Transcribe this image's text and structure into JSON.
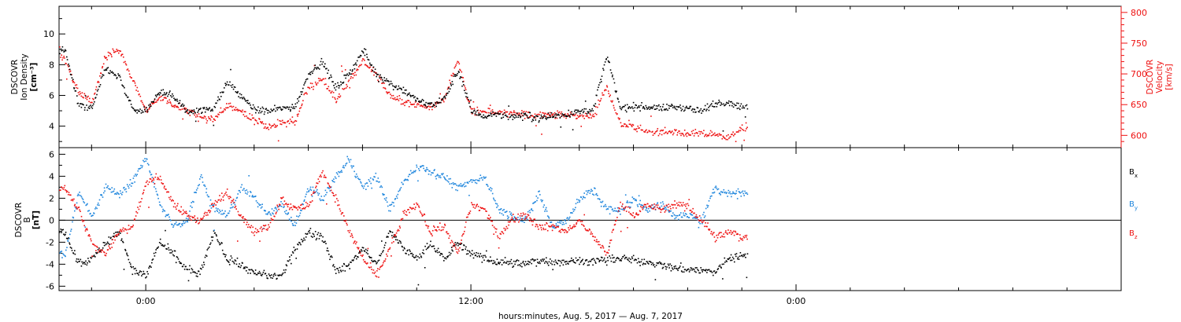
{
  "xlabel": "hours:minutes, Aug.  5, 2017 — Aug.  7, 2017",
  "x_ticks": [
    "0:00",
    "12:00",
    "0:00"
  ],
  "colors": {
    "black": "#000000",
    "red": "#ee1111",
    "blue": "#1f86dd"
  },
  "chart_data": [
    {
      "type": "scatter",
      "name": "plasma",
      "ylabel": [
        "DSCOVR",
        "Ion Density",
        "[cm⁻³]"
      ],
      "ylabel_right": [
        "DSCOVR",
        "Velocity",
        "[km/s]"
      ],
      "ylim": [
        2.6,
        11.8
      ],
      "yticks": [
        4,
        6,
        8,
        10
      ],
      "ylim_right": [
        580,
        810
      ],
      "yticks_right": [
        600,
        650,
        700,
        750,
        800
      ],
      "x_unit": "hours from Aug. 5 2017 0:00",
      "xlim": [
        -3.2,
        36
      ],
      "x_data_end": 22.2,
      "grid": false,
      "series": [
        {
          "color": "black",
          "axis": "left",
          "x": [
            -3.0,
            -2.5,
            -2.0,
            -1.5,
            -1.0,
            -0.5,
            0.0,
            0.5,
            1.0,
            1.5,
            2.0,
            2.5,
            3.0,
            3.5,
            4.0,
            4.5,
            5.0,
            5.5,
            6.0,
            6.5,
            7.0,
            7.5,
            8.0,
            8.5,
            9.0,
            9.5,
            10.0,
            10.5,
            11.0,
            11.5,
            12.0,
            12.5,
            13.0,
            13.5,
            14.0,
            14.5,
            15.0,
            15.5,
            16.0,
            16.5,
            17.0,
            17.5,
            18.0,
            18.5,
            19.0,
            19.5,
            20.0,
            20.5,
            21.0,
            21.5,
            22.0
          ],
          "values": [
            9.0,
            5.4,
            5.2,
            7.8,
            7.2,
            5.1,
            5.0,
            6.3,
            6.0,
            5.0,
            5.1,
            5.2,
            6.9,
            6.0,
            5.1,
            5.0,
            5.2,
            5.3,
            7.5,
            8.2,
            6.5,
            7.5,
            8.9,
            7.4,
            6.8,
            6.4,
            5.7,
            5.4,
            5.8,
            7.7,
            5.0,
            4.7,
            4.8,
            4.7,
            4.7,
            4.6,
            4.7,
            4.8,
            5.0,
            5.2,
            8.6,
            5.2,
            5.3,
            5.3,
            5.2,
            5.3,
            5.2,
            5.0,
            5.5,
            5.6,
            5.3
          ]
        },
        {
          "color": "red",
          "axis": "right",
          "x": [
            -3.0,
            -2.5,
            -2.0,
            -1.5,
            -1.0,
            -0.5,
            0.0,
            0.5,
            1.0,
            1.5,
            2.0,
            2.5,
            3.0,
            3.5,
            4.0,
            4.5,
            5.0,
            5.5,
            6.0,
            6.5,
            7.0,
            7.5,
            8.0,
            8.5,
            9.0,
            9.5,
            10.0,
            10.5,
            11.0,
            11.5,
            12.0,
            12.5,
            13.0,
            13.5,
            14.0,
            14.5,
            15.0,
            15.5,
            16.0,
            16.5,
            17.0,
            17.5,
            18.0,
            18.5,
            19.0,
            19.5,
            20.0,
            20.5,
            21.0,
            21.5,
            22.0
          ],
          "values": [
            725,
            670,
            655,
            730,
            740,
            690,
            640,
            665,
            650,
            640,
            630,
            625,
            650,
            640,
            625,
            615,
            620,
            625,
            680,
            690,
            660,
            690,
            720,
            700,
            665,
            655,
            650,
            645,
            660,
            725,
            640,
            638,
            638,
            636,
            635,
            634,
            635,
            634,
            633,
            632,
            680,
            620,
            612,
            608,
            607,
            606,
            604,
            603,
            602,
            598,
            612
          ]
        }
      ]
    },
    {
      "type": "scatter",
      "name": "magnetic-field",
      "ylabel": [
        "DSCOVR",
        "B",
        "[nT]"
      ],
      "ylim": [
        -6.4,
        6.6
      ],
      "yticks": [
        -6,
        -4,
        -2,
        0,
        2,
        4,
        6
      ],
      "zero_line": true,
      "legend_position": "right",
      "x_unit": "hours from Aug. 5 2017 0:00",
      "xlim": [
        -3.2,
        36
      ],
      "x_data_end": 22.2,
      "grid": false,
      "series": [
        {
          "name": "Bx",
          "color": "black",
          "x": [
            -3.0,
            -2.5,
            -2.0,
            -1.5,
            -1.0,
            -0.5,
            0.0,
            0.5,
            1.0,
            1.5,
            2.0,
            2.5,
            3.0,
            3.5,
            4.0,
            4.5,
            5.0,
            5.5,
            6.0,
            6.5,
            7.0,
            7.5,
            8.0,
            8.5,
            9.0,
            9.5,
            10.0,
            10.5,
            11.0,
            11.5,
            12.0,
            12.5,
            13.0,
            13.5,
            14.0,
            14.5,
            15.0,
            15.5,
            16.0,
            16.5,
            17.0,
            17.5,
            18.0,
            18.5,
            19.0,
            19.5,
            20.0,
            20.5,
            21.0,
            21.5,
            22.0
          ],
          "values": [
            -1.0,
            -3.8,
            -3.5,
            -2.0,
            -1.0,
            -4.5,
            -5.0,
            -2.0,
            -3.0,
            -4.5,
            -4.8,
            -1.0,
            -3.5,
            -4.0,
            -4.8,
            -5.0,
            -5.0,
            -2.5,
            -1.0,
            -1.5,
            -4.5,
            -4.0,
            -2.5,
            -4.0,
            -1.0,
            -2.5,
            -3.5,
            -2.0,
            -3.5,
            -2.0,
            -3.0,
            -3.5,
            -3.8,
            -3.8,
            -3.9,
            -3.6,
            -3.8,
            -3.7,
            -3.6,
            -3.7,
            -3.5,
            -3.4,
            -3.6,
            -3.7,
            -4.0,
            -4.3,
            -4.4,
            -4.5,
            -4.7,
            -3.3,
            -3.2
          ]
        },
        {
          "name": "By",
          "color": "blue",
          "x": [
            -3.0,
            -2.5,
            -2.0,
            -1.5,
            -1.0,
            -0.5,
            0.0,
            0.5,
            1.0,
            1.5,
            2.0,
            2.5,
            3.0,
            3.5,
            4.0,
            4.5,
            5.0,
            5.5,
            6.0,
            6.5,
            7.0,
            7.5,
            8.0,
            8.5,
            9.0,
            9.5,
            10.0,
            10.5,
            11.0,
            11.5,
            12.0,
            12.5,
            13.0,
            13.5,
            14.0,
            14.5,
            15.0,
            15.5,
            16.0,
            16.5,
            17.0,
            17.5,
            18.0,
            18.5,
            19.0,
            19.5,
            20.0,
            20.5,
            21.0,
            21.5,
            22.0
          ],
          "values": [
            -3.0,
            2.5,
            0.5,
            3.0,
            2.5,
            3.5,
            5.8,
            1.5,
            -0.5,
            0.0,
            4.0,
            1.0,
            0.5,
            3.0,
            2.0,
            0.5,
            1.5,
            -0.5,
            3.0,
            2.0,
            4.0,
            5.5,
            3.0,
            4.0,
            1.0,
            3.5,
            5.0,
            4.5,
            4.0,
            3.0,
            3.5,
            4.0,
            1.0,
            0.5,
            0.0,
            2.5,
            -0.5,
            0.0,
            2.0,
            2.8,
            1.0,
            1.0,
            2.0,
            1.0,
            1.5,
            0.5,
            0.5,
            0.0,
            3.0,
            2.5,
            2.5
          ]
        },
        {
          "name": "Bz",
          "color": "red",
          "x": [
            -3.0,
            -2.5,
            -2.0,
            -1.5,
            -1.0,
            -0.5,
            0.0,
            0.5,
            1.0,
            1.5,
            2.0,
            2.5,
            3.0,
            3.5,
            4.0,
            4.5,
            5.0,
            5.5,
            6.0,
            6.5,
            7.0,
            7.5,
            8.0,
            8.5,
            9.0,
            9.5,
            10.0,
            10.5,
            11.0,
            11.5,
            12.0,
            12.5,
            13.0,
            13.5,
            14.0,
            14.5,
            15.0,
            15.5,
            16.0,
            16.5,
            17.0,
            17.5,
            18.0,
            18.5,
            19.0,
            19.5,
            20.0,
            20.5,
            21.0,
            21.5,
            22.0
          ],
          "values": [
            3.0,
            1.0,
            -2.0,
            -3.0,
            -1.0,
            -0.5,
            3.5,
            4.0,
            1.5,
            0.5,
            0.0,
            1.5,
            2.5,
            0.5,
            -1.0,
            -0.5,
            2.0,
            1.0,
            1.5,
            4.5,
            2.0,
            -1.0,
            -3.5,
            -5.0,
            -2.5,
            0.5,
            1.5,
            -1.0,
            -0.5,
            -3.0,
            1.5,
            1.0,
            -1.5,
            0.2,
            0.5,
            -0.5,
            -0.5,
            -1.0,
            0.0,
            -1.5,
            -3.0,
            1.5,
            0.5,
            1.5,
            1.0,
            1.5,
            1.2,
            0.0,
            -1.5,
            -1.0,
            -1.5
          ]
        }
      ]
    }
  ]
}
